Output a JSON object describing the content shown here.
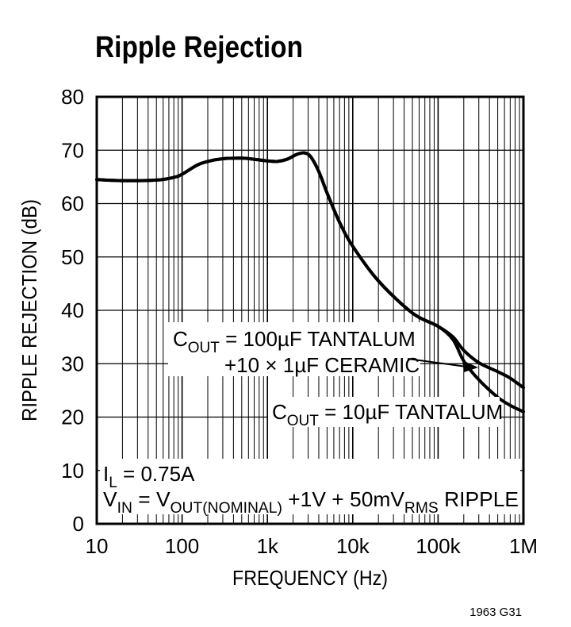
{
  "chart_data": {
    "type": "line",
    "title": "Ripple Rejection",
    "xlabel": "FREQUENCY (Hz)",
    "ylabel": "RIPPLE REJECTION (dB)",
    "x_scale": "log",
    "xlim": [
      10,
      1000000
    ],
    "ylim": [
      0,
      80
    ],
    "grid": true,
    "x_ticks": [
      {
        "value": 10,
        "label": "10"
      },
      {
        "value": 100,
        "label": "100"
      },
      {
        "value": 1000,
        "label": "1k"
      },
      {
        "value": 10000,
        "label": "10k"
      },
      {
        "value": 100000,
        "label": "100k"
      },
      {
        "value": 1000000,
        "label": "1M"
      }
    ],
    "y_ticks": [
      {
        "value": 0,
        "label": "0"
      },
      {
        "value": 10,
        "label": "10"
      },
      {
        "value": 20,
        "label": "20"
      },
      {
        "value": 30,
        "label": "30"
      },
      {
        "value": 40,
        "label": "40"
      },
      {
        "value": 50,
        "label": "50"
      },
      {
        "value": 60,
        "label": "60"
      },
      {
        "value": 70,
        "label": "70"
      },
      {
        "value": 80,
        "label": "80"
      }
    ],
    "series": [
      {
        "name": "COUT = 100µF TANTALUM +10 × 1µF CERAMIC",
        "x": [
          10,
          20,
          50,
          80,
          100,
          150,
          200,
          300,
          500,
          700,
          1000,
          1300,
          1700,
          2200,
          2700,
          3200,
          4000,
          5000,
          7000,
          10000,
          20000,
          50000,
          100000,
          150000,
          200000,
          300000,
          500000,
          700000,
          1000000
        ],
        "y": [
          64.5,
          64.3,
          64.4,
          64.9,
          65.5,
          67.2,
          67.9,
          68.4,
          68.5,
          68.3,
          68.0,
          67.9,
          68.3,
          69.2,
          69.5,
          68.8,
          66.0,
          62.0,
          56.5,
          52.0,
          45.5,
          39.5,
          37.0,
          35.0,
          32.5,
          30.2,
          28.5,
          27.3,
          25.5
        ]
      },
      {
        "name": "COUT = 10µF TANTALUM",
        "x": [
          10,
          20,
          50,
          80,
          100,
          150,
          200,
          300,
          500,
          700,
          1000,
          1300,
          1700,
          2200,
          2700,
          3200,
          4000,
          5000,
          7000,
          10000,
          20000,
          50000,
          100000,
          150000,
          200000,
          300000,
          500000,
          700000,
          1000000
        ],
        "y": [
          64.5,
          64.3,
          64.4,
          64.9,
          65.5,
          67.2,
          67.9,
          68.4,
          68.5,
          68.3,
          68.0,
          67.9,
          68.3,
          69.2,
          69.5,
          68.8,
          66.0,
          62.0,
          56.5,
          52.0,
          45.5,
          39.5,
          37.0,
          34.5,
          30.5,
          27.0,
          23.7,
          22.2,
          21.0
        ]
      }
    ],
    "annotations": {
      "label_100uf_line1": {
        "prefix": "C",
        "sub": "OUT",
        "suffix": " = 100µF TANTALUM"
      },
      "label_100uf_line2": "+10 × 1µF CERAMIC",
      "label_10uf": {
        "prefix": "C",
        "sub": "OUT",
        "suffix": " = 10µF TANTALUM"
      },
      "cond_line1": {
        "prefix": "I",
        "sub": "L",
        "suffix": " = 0.75A"
      },
      "cond_line2": {
        "p1": "V",
        "s1": "IN",
        "p2": " = V",
        "s2": "OUT(NOMINAL)",
        "p3": " +1V + 50mV",
        "s3": "RMS",
        "p4": " RIPPLE"
      }
    },
    "footer_code": "1963 G31"
  }
}
